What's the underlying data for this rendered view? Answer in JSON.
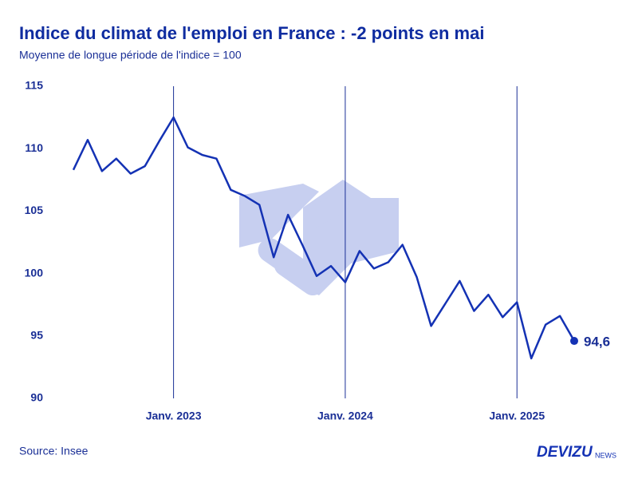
{
  "chart_data": {
    "type": "line",
    "title": "Indice du climat de l'emploi en France : -2 points en mai",
    "subtitle": "Moyenne de longue période de l'indice = 100",
    "source": "Source: Insee",
    "brand": "DEVIZU",
    "brand_suffix": "NEWS",
    "categories": [
      null,
      null,
      null,
      null,
      null,
      null,
      null,
      "Janv. 2023",
      null,
      null,
      null,
      null,
      null,
      null,
      null,
      null,
      null,
      null,
      null,
      "Janv. 2024",
      null,
      null,
      null,
      null,
      null,
      null,
      null,
      null,
      null,
      null,
      null,
      "Janv. 2025",
      null,
      null,
      null,
      null
    ],
    "values": [
      108.3,
      110.7,
      108.2,
      109.2,
      108.0,
      108.6,
      110.6,
      112.5,
      110.1,
      109.5,
      109.2,
      106.7,
      106.2,
      105.5,
      101.3,
      104.7,
      102.3,
      99.8,
      100.6,
      99.3,
      101.8,
      100.4,
      100.9,
      102.3,
      99.7,
      95.8,
      97.6,
      99.4,
      97.0,
      98.3,
      96.5,
      97.7,
      93.2,
      95.9,
      96.6,
      94.6
    ],
    "value_labels": [
      null,
      null,
      null,
      null,
      null,
      null,
      null,
      null,
      null,
      null,
      null,
      null,
      null,
      null,
      null,
      null,
      null,
      null,
      null,
      null,
      null,
      null,
      null,
      null,
      null,
      null,
      null,
      null,
      null,
      null,
      null,
      null,
      null,
      null,
      null,
      "94,6"
    ],
    "color": "#1432b4",
    "ylim": [
      90,
      115
    ],
    "yticks": [
      90,
      95,
      100,
      105,
      110,
      115
    ],
    "grid": false
  }
}
